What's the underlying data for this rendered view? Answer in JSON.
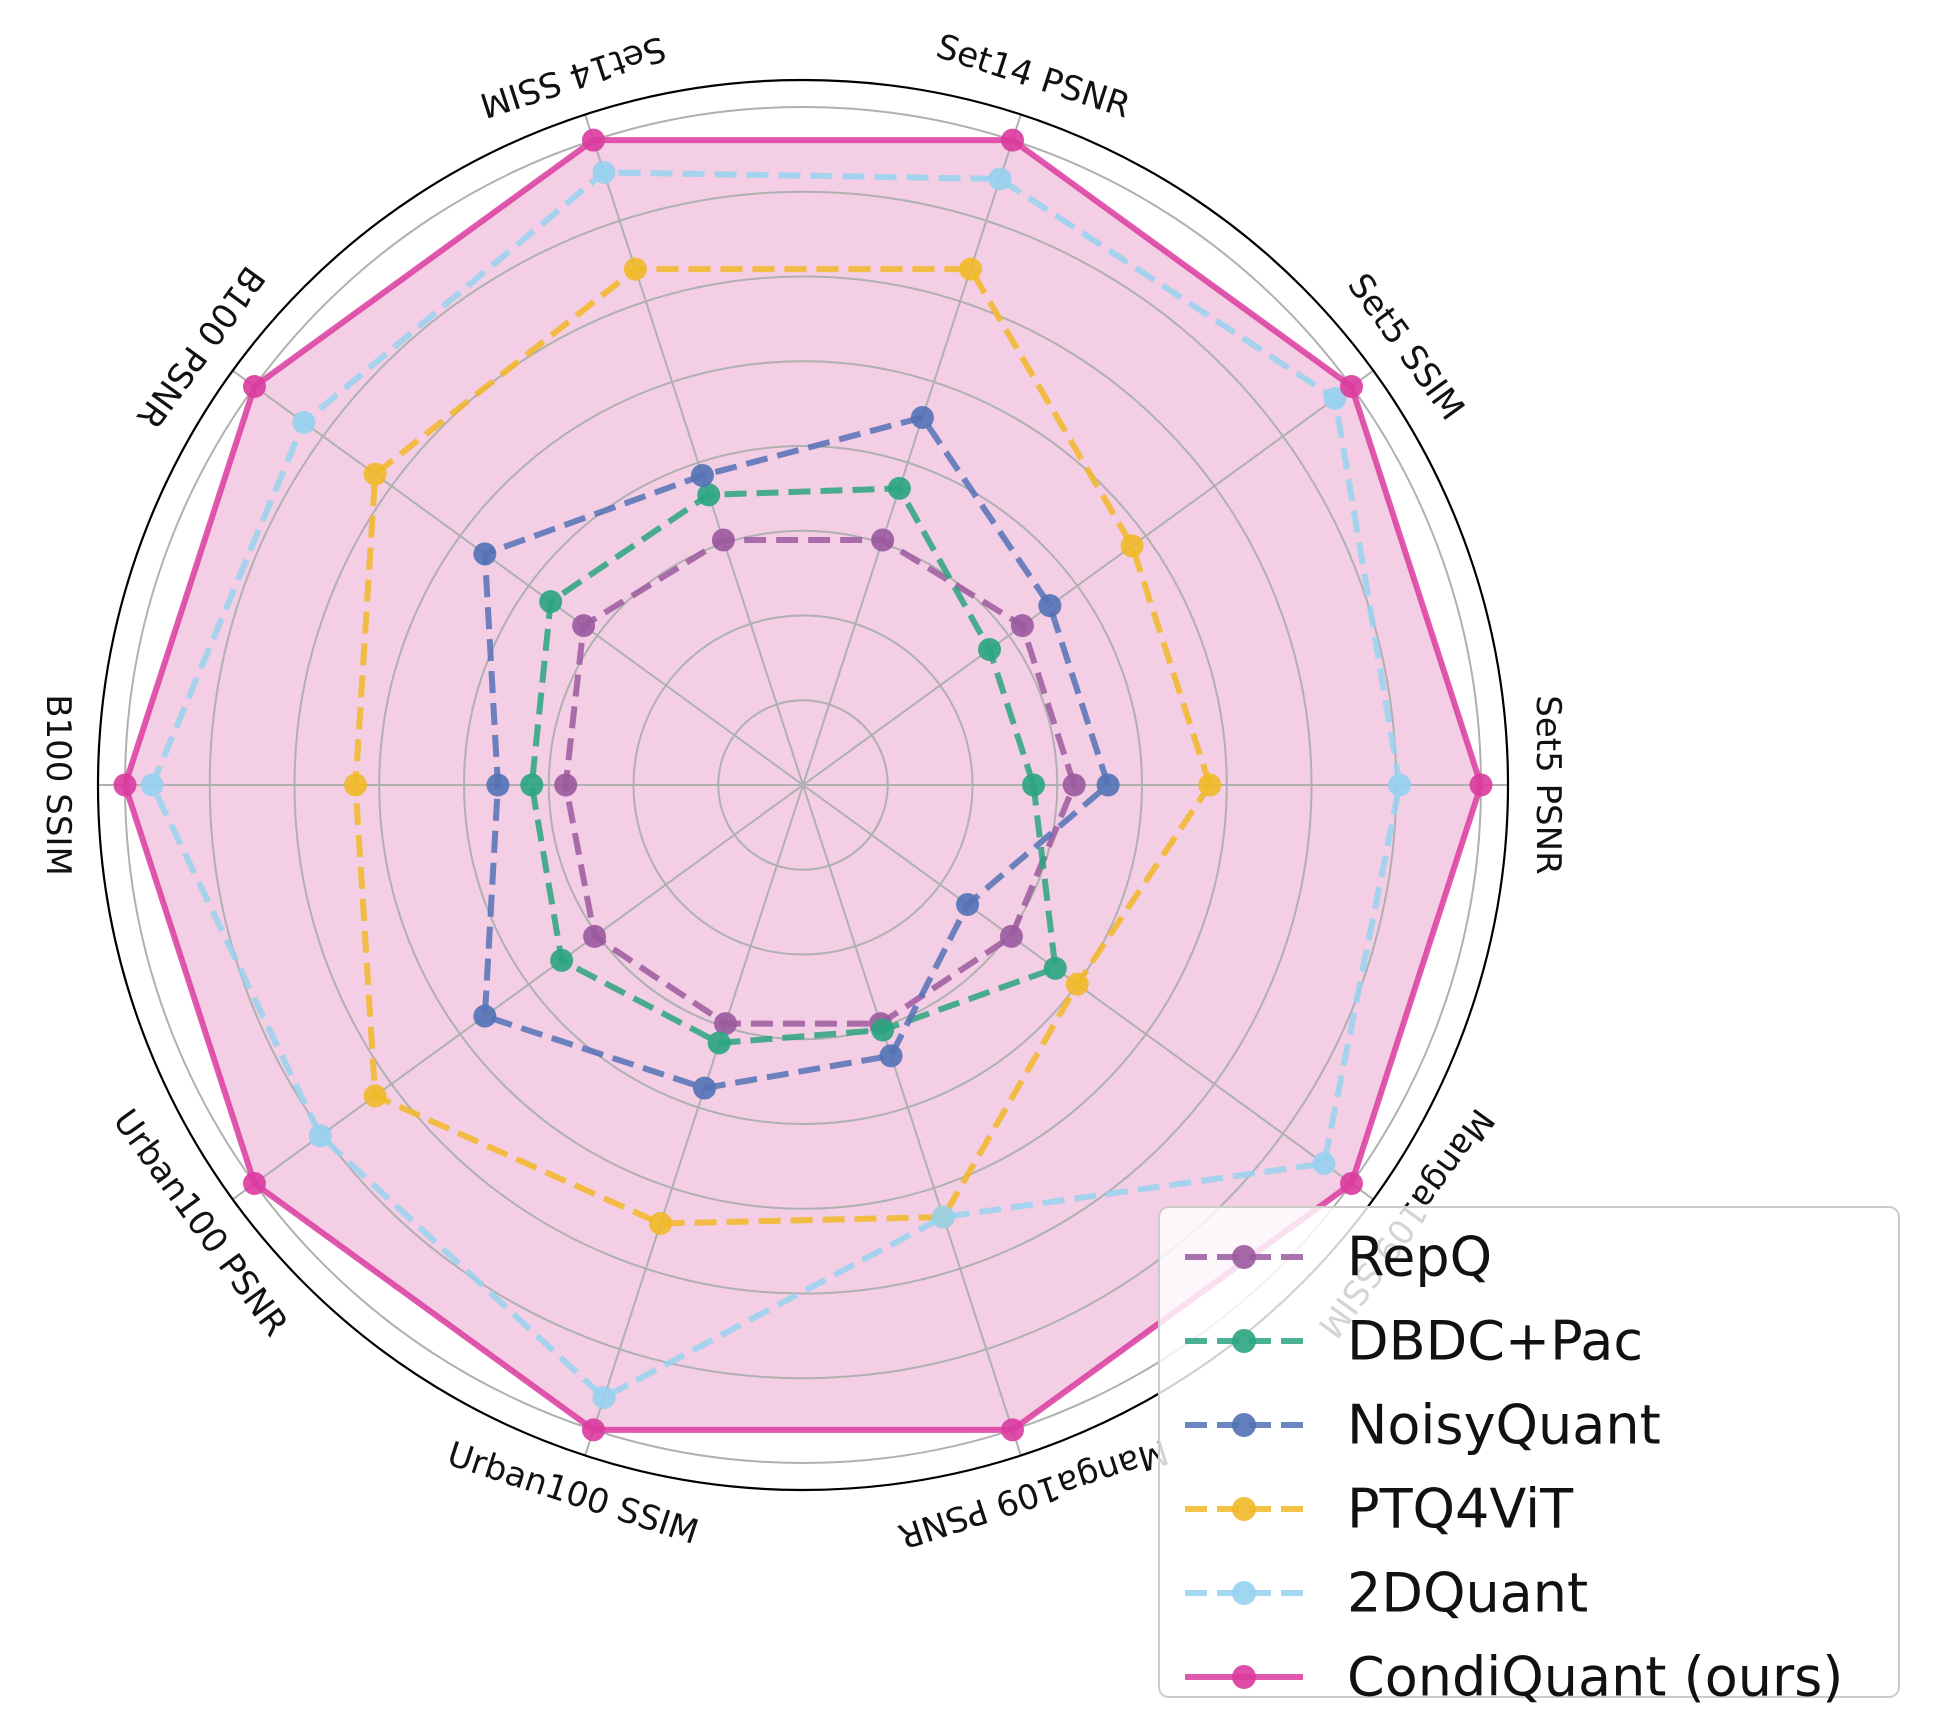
{
  "chart_data": {
    "type": "radar",
    "axes": [
      "Set5 PSNR",
      "Set5 SSIM",
      "Set14 PSNR",
      "Set14 SSIM",
      "B100 PSNR",
      "B100 SSIM",
      "Urban100 PSNR",
      "Urban100 SSIM",
      "Manga109 PSNR",
      "Manga109 SSIM"
    ],
    "rings": 8,
    "rlim": [
      0,
      1
    ],
    "grid": true,
    "legend_position": "bottom-right",
    "series": [
      {
        "name": "RepQ",
        "color": "#9b5a9f",
        "linestyle": "dashed",
        "fill": false,
        "values": [
          0.4,
          0.4,
          0.38,
          0.38,
          0.4,
          0.35,
          0.38,
          0.37,
          0.37,
          0.38
        ]
      },
      {
        "name": "DBDC+Pac",
        "color": "#2aa57f",
        "linestyle": "dashed",
        "fill": false,
        "values": [
          0.34,
          0.34,
          0.46,
          0.45,
          0.46,
          0.4,
          0.44,
          0.4,
          0.38,
          0.46
        ]
      },
      {
        "name": "NoisyQuant",
        "color": "#5272b5",
        "linestyle": "dashed",
        "fill": false,
        "values": [
          0.45,
          0.45,
          0.57,
          0.48,
          0.58,
          0.45,
          0.58,
          0.47,
          0.42,
          0.3
        ]
      },
      {
        "name": "PTQ4ViT",
        "color": "#f1b928",
        "linestyle": "dashed",
        "fill": false,
        "values": [
          0.6,
          0.6,
          0.8,
          0.8,
          0.78,
          0.66,
          0.78,
          0.68,
          0.67,
          0.5
        ]
      },
      {
        "name": "2DQuant",
        "color": "#96d2ee",
        "linestyle": "dashed",
        "fill": false,
        "values": [
          0.88,
          0.97,
          0.94,
          0.95,
          0.91,
          0.96,
          0.88,
          0.95,
          0.67,
          0.95
        ]
      },
      {
        "name": "CondiQuant (ours)",
        "color": "#da3b9f",
        "linestyle": "solid",
        "fill": true,
        "fill_color": "#f3cee5",
        "values": [
          1.0,
          1.0,
          1.0,
          1.0,
          1.0,
          1.0,
          1.0,
          1.0,
          1.0,
          1.0
        ]
      }
    ]
  }
}
